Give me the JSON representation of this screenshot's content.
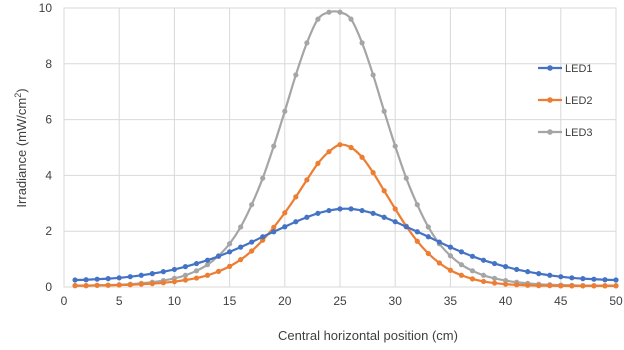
{
  "chart_data": {
    "type": "line",
    "xlabel": "Central horizontal position (cm)",
    "ylabel_main": "Irradiance (mW/cm",
    "ylabel_sup": "2",
    "ylabel_close": ")",
    "xlim": [
      0,
      50
    ],
    "ylim": [
      0,
      10
    ],
    "x_ticks": [
      "0",
      "5",
      "10",
      "15",
      "20",
      "25",
      "30",
      "35",
      "40",
      "45",
      "50"
    ],
    "y_ticks": [
      "0",
      "2",
      "4",
      "6",
      "8",
      "10"
    ],
    "grid": true,
    "legend_position": "right",
    "x": [
      1,
      2,
      3,
      4,
      5,
      6,
      7,
      8,
      9,
      10,
      11,
      12,
      13,
      14,
      15,
      16,
      17,
      18,
      19,
      20,
      21,
      22,
      23,
      24,
      25,
      26,
      27,
      28,
      29,
      30,
      31,
      32,
      33,
      34,
      35,
      36,
      37,
      38,
      39,
      40,
      41,
      42,
      43,
      44,
      45,
      46,
      47,
      48,
      49,
      50
    ],
    "series": [
      {
        "name": "LED1",
        "color": "#4472C4",
        "values": [
          0.25,
          0.26,
          0.28,
          0.3,
          0.33,
          0.37,
          0.42,
          0.48,
          0.55,
          0.63,
          0.73,
          0.84,
          0.96,
          1.1,
          1.26,
          1.43,
          1.61,
          1.8,
          1.98,
          2.16,
          2.34,
          2.5,
          2.64,
          2.74,
          2.8,
          2.8,
          2.74,
          2.64,
          2.5,
          2.34,
          2.16,
          1.98,
          1.8,
          1.61,
          1.43,
          1.26,
          1.1,
          0.96,
          0.84,
          0.73,
          0.63,
          0.55,
          0.48,
          0.42,
          0.37,
          0.33,
          0.3,
          0.28,
          0.26,
          0.25
        ]
      },
      {
        "name": "LED2",
        "color": "#ED7D31",
        "values": [
          0.05,
          0.05,
          0.06,
          0.06,
          0.07,
          0.08,
          0.1,
          0.12,
          0.15,
          0.19,
          0.25,
          0.32,
          0.42,
          0.56,
          0.74,
          0.98,
          1.29,
          1.68,
          2.14,
          2.66,
          3.23,
          3.84,
          4.43,
          4.85,
          5.1,
          5.0,
          4.65,
          4.1,
          3.45,
          2.8,
          2.18,
          1.64,
          1.2,
          0.86,
          0.6,
          0.42,
          0.29,
          0.2,
          0.14,
          0.1,
          0.08,
          0.06,
          0.05,
          0.05,
          0.04,
          0.04,
          0.04,
          0.04,
          0.04,
          0.04
        ]
      },
      {
        "name": "LED3",
        "color": "#A5A5A5",
        "values": [
          0.05,
          0.05,
          0.06,
          0.07,
          0.08,
          0.1,
          0.13,
          0.17,
          0.23,
          0.31,
          0.42,
          0.58,
          0.8,
          1.12,
          1.55,
          2.15,
          2.95,
          3.9,
          5.05,
          6.3,
          7.6,
          8.75,
          9.6,
          9.85,
          9.85,
          9.6,
          8.75,
          7.6,
          6.3,
          5.05,
          3.9,
          2.95,
          2.15,
          1.55,
          1.12,
          0.8,
          0.58,
          0.42,
          0.31,
          0.23,
          0.17,
          0.13,
          0.1,
          0.08,
          0.07,
          0.06,
          0.05,
          0.05,
          0.05,
          0.05
        ]
      }
    ]
  }
}
